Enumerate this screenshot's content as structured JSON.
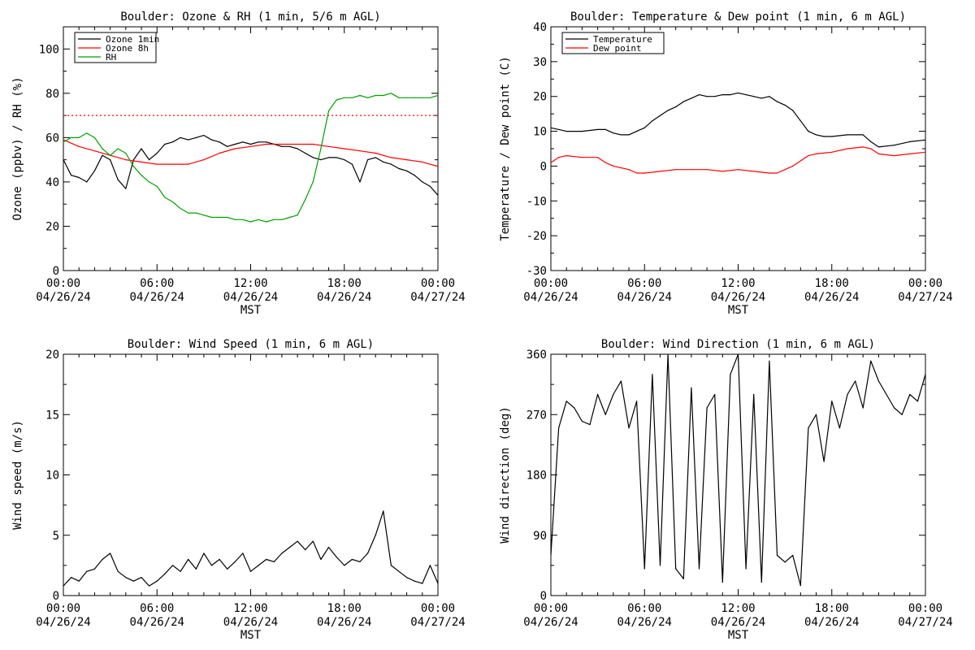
{
  "chart_data": [
    {
      "id": "ozone",
      "type": "line",
      "title": "Boulder: Ozone & RH (1 min, 5/6 m AGL)",
      "ylabel": "Ozone (ppbv) / RH (%)",
      "xlabel": "MST",
      "ylim": [
        0,
        110
      ],
      "yticks": [
        0,
        20,
        40,
        60,
        80,
        100
      ],
      "xticks": [
        {
          "time": "00:00",
          "date": "04/26/24"
        },
        {
          "time": "06:00",
          "date": "04/26/24"
        },
        {
          "time": "12:00",
          "date": "04/26/24"
        },
        {
          "time": "18:00",
          "date": "04/26/24"
        },
        {
          "time": "00:00",
          "date": "04/27/24"
        }
      ],
      "legend_position": "top-left",
      "legend": [
        {
          "label": "Ozone 1min",
          "color": "#000000"
        },
        {
          "label": "Ozone 8h",
          "color": "#ff0000"
        },
        {
          "label": "RH",
          "color": "#00a000"
        }
      ],
      "reference_line": {
        "y": 70,
        "color": "#ff0000",
        "style": "dotted"
      },
      "series": [
        {
          "name": "Ozone 1min",
          "color": "#000000",
          "x": [
            0,
            0.5,
            1,
            1.5,
            2,
            2.5,
            3,
            3.5,
            4,
            4.5,
            5,
            5.5,
            6,
            6.5,
            7,
            7.5,
            8,
            8.5,
            9,
            9.5,
            10,
            10.5,
            11,
            11.5,
            12,
            12.5,
            13,
            13.5,
            14,
            14.5,
            15,
            15.5,
            16,
            16.5,
            17,
            17.5,
            18,
            18.5,
            19,
            19.5,
            20,
            20.5,
            21,
            21.5,
            22,
            22.5,
            23,
            23.5,
            24
          ],
          "values": [
            50,
            43,
            42,
            40,
            45,
            52,
            50,
            41,
            37,
            50,
            55,
            50,
            53,
            57,
            58,
            60,
            59,
            60,
            61,
            59,
            58,
            56,
            57,
            58,
            57,
            58,
            58,
            57,
            56,
            56,
            55,
            53,
            51,
            50,
            51,
            51,
            50,
            48,
            40,
            50,
            51,
            49,
            48,
            46,
            45,
            43,
            40,
            38,
            34
          ]
        },
        {
          "name": "Ozone 8h",
          "color": "#ff0000",
          "x": [
            0,
            1,
            2,
            3,
            4,
            5,
            6,
            7,
            8,
            9,
            10,
            11,
            12,
            13,
            14,
            15,
            16,
            17,
            18,
            19,
            20,
            21,
            22,
            23,
            24
          ],
          "values": [
            59,
            56,
            54,
            52,
            50,
            49,
            48,
            48,
            48,
            50,
            53,
            55,
            56,
            57,
            57,
            57,
            57,
            56,
            55,
            54,
            53,
            51,
            50,
            49,
            47
          ]
        },
        {
          "name": "RH",
          "color": "#00a000",
          "x": [
            0,
            0.5,
            1,
            1.5,
            2,
            2.5,
            3,
            3.5,
            4,
            4.5,
            5,
            5.5,
            6,
            6.5,
            7,
            7.5,
            8,
            8.5,
            9,
            9.5,
            10,
            10.5,
            11,
            11.5,
            12,
            12.5,
            13,
            13.5,
            14,
            14.5,
            15,
            15.5,
            16,
            16.5,
            17,
            17.5,
            18,
            18.5,
            19,
            19.5,
            20,
            20.5,
            21,
            21.5,
            22,
            22.5,
            23,
            23.5,
            24
          ],
          "values": [
            58,
            60,
            60,
            62,
            60,
            55,
            52,
            55,
            53,
            47,
            43,
            40,
            38,
            33,
            31,
            28,
            26,
            26,
            25,
            24,
            24,
            24,
            23,
            23,
            22,
            23,
            22,
            23,
            23,
            24,
            25,
            32,
            40,
            55,
            72,
            77,
            78,
            78,
            79,
            78,
            79,
            79,
            80,
            78,
            78,
            78,
            78,
            78,
            79
          ]
        }
      ]
    },
    {
      "id": "temp",
      "type": "line",
      "title": "Boulder: Temperature & Dew point (1 min, 6 m AGL)",
      "ylabel": "Temperature / Dew point (C)",
      "xlabel": "MST",
      "ylim": [
        -30,
        40
      ],
      "yticks": [
        -30,
        -20,
        -10,
        0,
        10,
        20,
        30,
        40
      ],
      "xticks": [
        {
          "time": "00:00",
          "date": "04/26/24"
        },
        {
          "time": "06:00",
          "date": "04/26/24"
        },
        {
          "time": "12:00",
          "date": "04/26/24"
        },
        {
          "time": "18:00",
          "date": "04/26/24"
        },
        {
          "time": "00:00",
          "date": "04/27/24"
        }
      ],
      "legend_position": "top-left",
      "legend": [
        {
          "label": "Temperature",
          "color": "#000000"
        },
        {
          "label": "Dew point",
          "color": "#ff0000"
        }
      ],
      "series": [
        {
          "name": "Temperature",
          "color": "#000000",
          "x": [
            0,
            1,
            2,
            3,
            3.5,
            4,
            4.5,
            5,
            5.5,
            6,
            6.5,
            7,
            7.5,
            8,
            8.5,
            9,
            9.5,
            10,
            10.5,
            11,
            11.5,
            12,
            12.5,
            13,
            13.5,
            14,
            14.5,
            15,
            15.5,
            16,
            16.5,
            17,
            17.5,
            18,
            19,
            20,
            20.5,
            21,
            22,
            23,
            24
          ],
          "values": [
            11,
            10,
            10,
            10.5,
            10.5,
            9.5,
            9,
            9,
            10,
            11,
            13,
            14.5,
            16,
            17,
            18.5,
            19.5,
            20.5,
            20,
            20,
            20.5,
            20.5,
            21,
            20.5,
            20,
            19.5,
            20,
            18.5,
            17.5,
            16,
            13,
            10,
            9,
            8.5,
            8.5,
            9,
            9,
            7,
            5.5,
            6,
            7,
            7.5
          ]
        },
        {
          "name": "Dew point",
          "color": "#ff0000",
          "x": [
            0,
            0.5,
            1,
            2,
            3,
            3.5,
            4,
            5,
            5.5,
            6,
            7,
            8,
            9,
            10,
            11,
            12,
            13,
            14,
            14.5,
            15,
            15.5,
            16,
            16.5,
            17,
            18,
            19,
            20,
            20.5,
            21,
            22,
            23,
            24
          ],
          "values": [
            1,
            2.5,
            3,
            2.5,
            2.5,
            1,
            0,
            -1,
            -2,
            -2,
            -1.5,
            -1,
            -1,
            -1,
            -1.5,
            -1,
            -1.5,
            -2,
            -2,
            -1,
            0,
            1.5,
            3,
            3.5,
            4,
            5,
            5.5,
            5,
            3.5,
            3,
            3.5,
            4
          ]
        }
      ]
    },
    {
      "id": "wspd",
      "type": "line",
      "title": "Boulder: Wind Speed (1 min, 6 m AGL)",
      "ylabel": "Wind speed (m/s)",
      "xlabel": "MST",
      "ylim": [
        0,
        20
      ],
      "yticks": [
        0,
        5,
        10,
        15,
        20
      ],
      "xticks": [
        {
          "time": "00:00",
          "date": "04/26/24"
        },
        {
          "time": "06:00",
          "date": "04/26/24"
        },
        {
          "time": "12:00",
          "date": "04/26/24"
        },
        {
          "time": "18:00",
          "date": "04/26/24"
        },
        {
          "time": "00:00",
          "date": "04/27/24"
        }
      ],
      "series": [
        {
          "name": "",
          "color": "#000000",
          "x": [
            0,
            0.5,
            1,
            1.5,
            2,
            2.5,
            3,
            3.5,
            4,
            4.5,
            5,
            5.5,
            6,
            6.5,
            7,
            7.5,
            8,
            8.5,
            9,
            9.5,
            10,
            10.5,
            11,
            11.5,
            12,
            12.5,
            13,
            13.5,
            14,
            14.5,
            15,
            15.5,
            16,
            16.5,
            17,
            17.5,
            18,
            18.5,
            19,
            19.5,
            20,
            20.5,
            21,
            21.5,
            22,
            22.5,
            23,
            23.5,
            24
          ],
          "values": [
            0.8,
            1.5,
            1.2,
            2,
            2.2,
            3,
            3.5,
            2,
            1.5,
            1.2,
            1.5,
            0.8,
            1.2,
            1.8,
            2.5,
            2,
            3,
            2.2,
            3.5,
            2.5,
            3,
            2.2,
            2.8,
            3.5,
            2,
            2.5,
            3,
            2.8,
            3.5,
            4,
            4.5,
            3.8,
            4.5,
            3,
            4,
            3.2,
            2.5,
            3,
            2.8,
            3.5,
            5,
            7,
            2.5,
            2,
            1.5,
            1.2,
            1,
            2.5,
            1
          ]
        }
      ]
    },
    {
      "id": "wdir",
      "type": "line",
      "title": "Boulder: Wind Direction (1 min, 6 m AGL)",
      "ylabel": "Wind direction (deg)",
      "xlabel": "MST",
      "ylim": [
        0,
        360
      ],
      "yticks": [
        0,
        90,
        180,
        270,
        360
      ],
      "xticks": [
        {
          "time": "00:00",
          "date": "04/26/24"
        },
        {
          "time": "06:00",
          "date": "04/26/24"
        },
        {
          "time": "12:00",
          "date": "04/26/24"
        },
        {
          "time": "18:00",
          "date": "04/26/24"
        },
        {
          "time": "00:00",
          "date": "04/27/24"
        }
      ],
      "series": [
        {
          "name": "",
          "color": "#000000",
          "x": [
            0,
            0.5,
            1,
            1.5,
            2,
            2.5,
            3,
            3.5,
            4,
            4.5,
            5,
            5.5,
            6,
            6.5,
            7,
            7.5,
            8,
            8.5,
            9,
            9.5,
            10,
            10.5,
            11,
            11.5,
            12,
            12.5,
            13,
            13.5,
            14,
            14.5,
            15,
            15.5,
            16,
            16.5,
            17,
            17.5,
            18,
            18.5,
            19,
            19.5,
            20,
            20.5,
            21,
            21.5,
            22,
            22.5,
            23,
            23.5,
            24
          ],
          "values": [
            60,
            250,
            290,
            280,
            260,
            255,
            300,
            270,
            300,
            320,
            250,
            290,
            40,
            330,
            45,
            360,
            40,
            25,
            310,
            40,
            280,
            300,
            20,
            330,
            360,
            40,
            300,
            20,
            350,
            60,
            50,
            60,
            15,
            250,
            270,
            200,
            290,
            250,
            300,
            320,
            280,
            350,
            320,
            300,
            280,
            270,
            300,
            290,
            330
          ]
        }
      ]
    }
  ]
}
